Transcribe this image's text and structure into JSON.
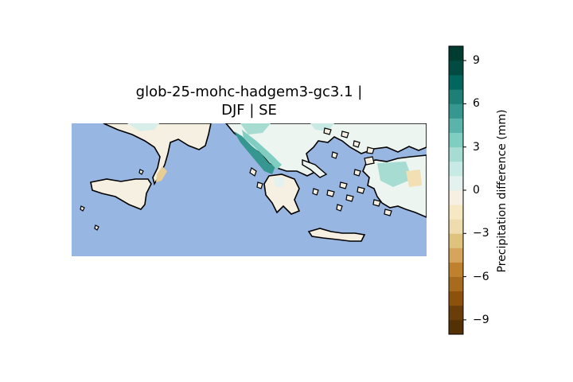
{
  "title": {
    "line1": "glob-25-mohc-hadgem3-gc3.1 |",
    "line2": "DJF | SE"
  },
  "map": {
    "region": "South-East Europe (Italy, Greece, Aegean, Western Turkey)",
    "ocean_color": "#97b6e1",
    "coastline_color": "#000000"
  },
  "colorbar": {
    "label": "Precipitation difference (mm)",
    "vmin": -10,
    "vmax": 10,
    "levels": 20,
    "ticks": [
      {
        "value": 9,
        "text": "9"
      },
      {
        "value": 6,
        "text": "6"
      },
      {
        "value": 3,
        "text": "3"
      },
      {
        "value": 0,
        "text": "0"
      },
      {
        "value": -3,
        "text": "−3"
      },
      {
        "value": -6,
        "text": "−6"
      },
      {
        "value": -9,
        "text": "−9"
      }
    ],
    "colors": [
      "#543005",
      "#6b3d09",
      "#8c510a",
      "#a66b1d",
      "#bf812d",
      "#d4a55b",
      "#dfc27d",
      "#eedcaf",
      "#f6e8c3",
      "#f5f0e1",
      "#e4f2ef",
      "#c7eae5",
      "#a6dcd2",
      "#80cdc1",
      "#5ab4ac",
      "#35978f",
      "#1d7f76",
      "#01665e",
      "#024b43",
      "#003c30"
    ]
  }
}
